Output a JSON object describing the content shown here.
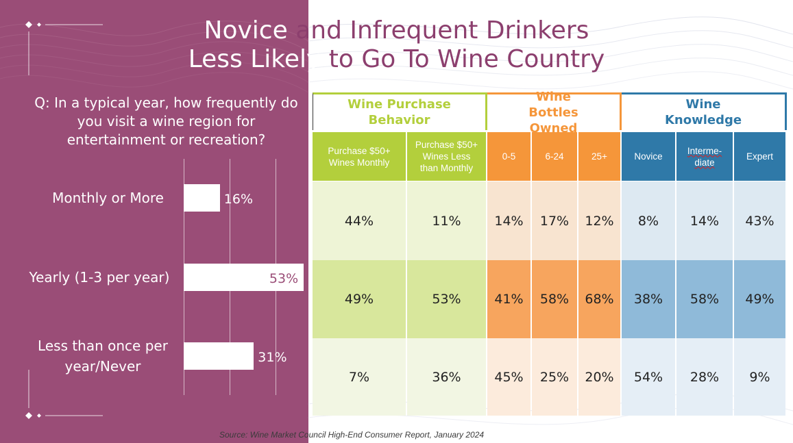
{
  "title": {
    "line1_a": "Novice",
    "line1_b": "and Infrequent Drinkers",
    "line2_a": "Less Likely",
    "line2_b": "to Go To Wine Country"
  },
  "question": "Q: In a typical year, how frequently do you visit a wine region for entertainment or recreation?",
  "colors": {
    "plum": "#9a4d77",
    "green": "#b3cf3c",
    "orange": "#f5963a",
    "blue": "#2f79a8"
  },
  "chart_data": {
    "type": "bar",
    "orientation": "horizontal",
    "categories": [
      "Monthly or More",
      "Yearly (1-3 per year)",
      "Less than once per year/Never"
    ],
    "values": [
      16,
      53,
      31
    ],
    "value_labels": [
      "16%",
      "53%",
      "31%"
    ],
    "xlim": [
      0,
      55
    ],
    "grid": true,
    "title": "",
    "xlabel": "",
    "ylabel": ""
  },
  "table": {
    "groups": [
      {
        "label": "Wine Purchase Behavior",
        "color": "#b3cf3c"
      },
      {
        "label": "Wine Bottles Owned",
        "color": "#f5963a"
      },
      {
        "label": "Wine Knowledge",
        "color": "#2f79a8"
      }
    ],
    "columns": [
      "Purchase $50+ Wines Monthly",
      "Purchase $50+ Wines Less than Monthly",
      "0-5",
      "6-24",
      "25+",
      "Novice",
      "Interme-diate",
      "Expert"
    ],
    "rows": [
      [
        "44%",
        "11%",
        "14%",
        "17%",
        "12%",
        "8%",
        "14%",
        "43%"
      ],
      [
        "49%",
        "53%",
        "41%",
        "58%",
        "68%",
        "38%",
        "58%",
        "49%"
      ],
      [
        "7%",
        "36%",
        "45%",
        "25%",
        "20%",
        "54%",
        "28%",
        "9%"
      ]
    ]
  },
  "source": "Source: Wine Market Council High-End Consumer Report, January 2024"
}
